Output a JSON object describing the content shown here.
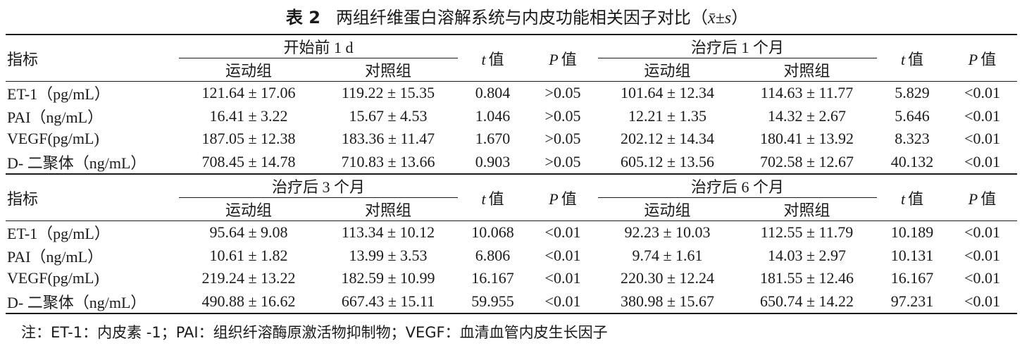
{
  "title": {
    "label": "表 2",
    "text": "两组纤维蛋白溶解系统与内皮功能相关因子对比（",
    "math": "x̄±s",
    "close": "）"
  },
  "table": {
    "indicator_header": "指标",
    "t_header": "t",
    "p_header": "P",
    "value_suffix": "值",
    "group_a": "运动组",
    "group_b": "对照组",
    "blocks": [
      {
        "periods": [
          "开始前 1 d",
          "治疗后 1 个月"
        ],
        "rows": [
          {
            "name": "ET-1（pg/mL）",
            "a1": "121.64 ± 17.06",
            "b1": "119.22 ± 15.35",
            "t1": "0.804",
            "p1": ">0.05",
            "a2": "101.64 ± 12.34",
            "b2": "114.63 ± 11.77",
            "t2": "5.829",
            "p2": "<0.01"
          },
          {
            "name": "PAI（ng/mL）",
            "a1": "16.41 ± 3.22",
            "b1": "15.67 ± 4.53",
            "t1": "1.046",
            "p1": ">0.05",
            "a2": "12.21 ± 1.35",
            "b2": "14.32 ± 2.67",
            "t2": "5.646",
            "p2": "<0.01"
          },
          {
            "name": "VEGF(pg/mL)",
            "a1": "187.05 ± 12.38",
            "b1": "183.36 ± 11.47",
            "t1": "1.670",
            "p1": ">0.05",
            "a2": "202.12 ± 14.34",
            "b2": "180.41 ± 13.92",
            "t2": "8.323",
            "p2": "<0.01"
          },
          {
            "name": "D- 二聚体（ng/mL）",
            "a1": "708.45 ± 14.78",
            "b1": "710.83 ± 13.66",
            "t1": "0.903",
            "p1": ">0.05",
            "a2": "605.12 ± 13.56",
            "b2": "702.58 ± 12.67",
            "t2": "40.132",
            "p2": "<0.01"
          }
        ]
      },
      {
        "periods": [
          "治疗后 3 个月",
          "治疗后 6 个月"
        ],
        "rows": [
          {
            "name": "ET-1（pg/mL）",
            "a1": "95.64 ± 9.08",
            "b1": "113.34 ± 10.12",
            "t1": "10.068",
            "p1": "<0.01",
            "a2": "92.23 ± 10.03",
            "b2": "112.55 ± 11.79",
            "t2": "10.189",
            "p2": "<0.01"
          },
          {
            "name": "PAI（ng/mL）",
            "a1": "10.61 ± 1.82",
            "b1": "13.99 ± 3.53",
            "t1": "6.806",
            "p1": "<0.01",
            "a2": "9.74 ± 1.61",
            "b2": "14.03 ± 2.97",
            "t2": "10.131",
            "p2": "<0.01"
          },
          {
            "name": "VEGF(pg/mL)",
            "a1": "219.24 ± 13.22",
            "b1": "182.59 ± 10.99",
            "t1": "16.167",
            "p1": "<0.01",
            "a2": "220.30 ± 12.24",
            "b2": "181.55 ± 12.46",
            "t2": "16.167",
            "p2": "<0.01"
          },
          {
            "name": "D- 二聚体（ng/mL）",
            "a1": "490.88 ± 16.62",
            "b1": "667.43 ± 15.11",
            "t1": "59.955",
            "p1": "<0.01",
            "a2": "380.98 ± 15.67",
            "b2": "650.74 ± 14.22",
            "t2": "97.231",
            "p2": "<0.01"
          }
        ]
      }
    ]
  },
  "note": "注：ET-1：内皮素 -1；PAI：组织纤溶酶原激活物抑制物；VEGF：血清血管内皮生长因子"
}
